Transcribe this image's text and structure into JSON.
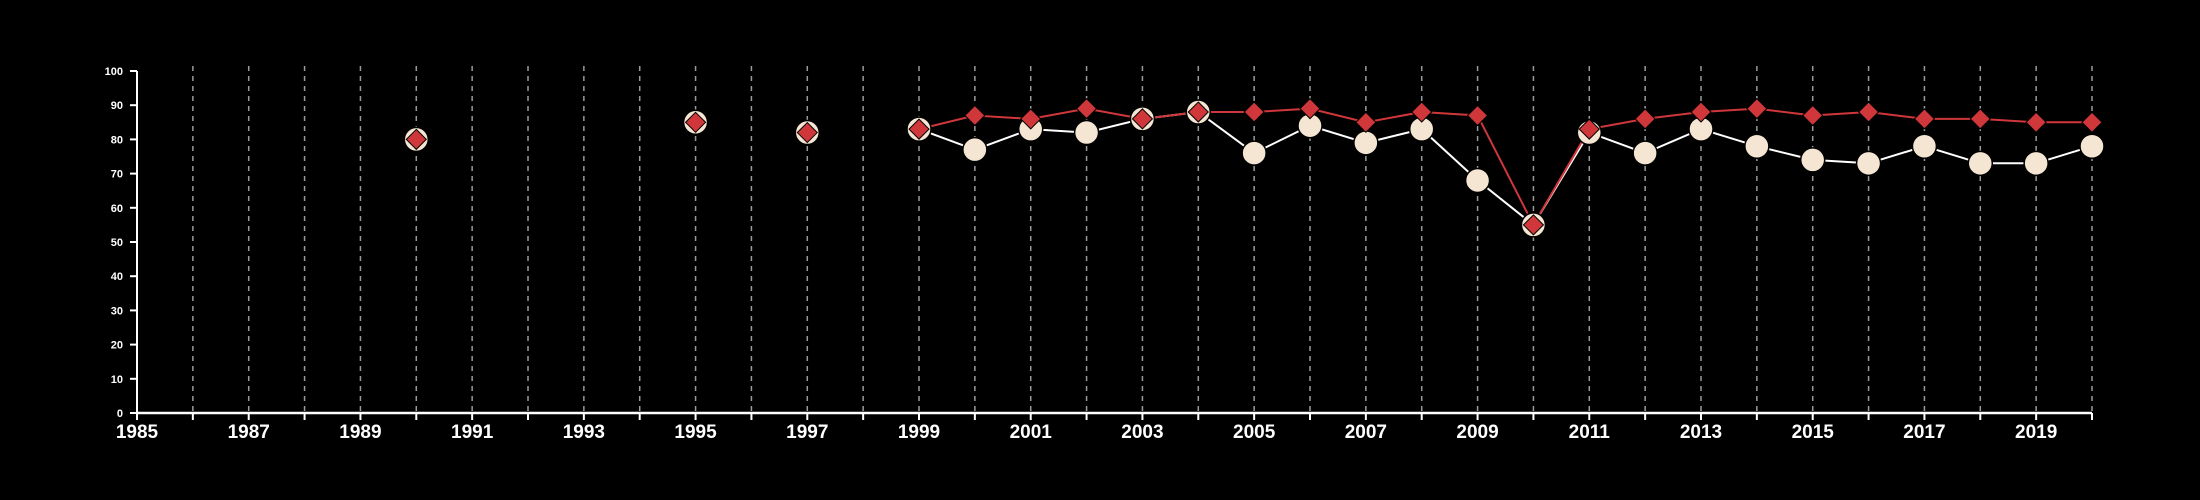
{
  "chart_data": {
    "type": "line",
    "title": "",
    "xlabel": "",
    "ylabel": "",
    "xlim": [
      1985,
      2020
    ],
    "ylim": [
      0,
      100
    ],
    "y_ticks": [
      "0",
      "10",
      "20",
      "30",
      "40",
      "50",
      "60",
      "70",
      "80",
      "90",
      "100"
    ],
    "x_ticks": [
      "1985",
      "1987",
      "1989",
      "1991",
      "1993",
      "1995",
      "1997",
      "1999",
      "2001",
      "2003",
      "2005",
      "2007",
      "2009",
      "2011",
      "2013",
      "2015",
      "2017",
      "2019"
    ],
    "grid": "vertical dashed lines at every year",
    "legend": "none",
    "colors": {
      "background": "#000000",
      "axis": "#ffffff",
      "grid": "#9a9a9a",
      "series_a_marker": "#f5e6d3",
      "series_a_line": "#ffffff",
      "series_b": "#d0373b"
    },
    "series": [
      {
        "marker": "circle",
        "points": [
          [
            1999,
            83
          ],
          [
            2000,
            77
          ],
          [
            2001,
            83
          ],
          [
            2002,
            82
          ],
          [
            2003,
            86
          ],
          [
            2004,
            88
          ],
          [
            2005,
            76
          ],
          [
            2006,
            84
          ],
          [
            2007,
            79
          ],
          [
            2008,
            83
          ],
          [
            2009,
            68
          ],
          [
            2010,
            55
          ],
          [
            2011,
            82
          ],
          [
            2012,
            76
          ],
          [
            2013,
            83
          ],
          [
            2014,
            78
          ],
          [
            2015,
            74
          ],
          [
            2016,
            73
          ],
          [
            2017,
            78
          ],
          [
            2018,
            73
          ],
          [
            2019,
            73
          ],
          [
            2020,
            78
          ]
        ],
        "isolated_points": [
          [
            1990,
            80
          ],
          [
            1995,
            85
          ],
          [
            1997,
            82
          ]
        ]
      },
      {
        "marker": "diamond",
        "points": [
          [
            1999,
            83
          ],
          [
            2000,
            87
          ],
          [
            2001,
            86
          ],
          [
            2002,
            89
          ],
          [
            2003,
            86
          ],
          [
            2004,
            88
          ],
          [
            2005,
            88
          ],
          [
            2006,
            89
          ],
          [
            2007,
            85
          ],
          [
            2008,
            88
          ],
          [
            2009,
            87
          ],
          [
            2010,
            55
          ],
          [
            2011,
            83
          ],
          [
            2012,
            86
          ],
          [
            2013,
            88
          ],
          [
            2014,
            89
          ],
          [
            2015,
            87
          ],
          [
            2016,
            88
          ],
          [
            2017,
            86
          ],
          [
            2018,
            86
          ],
          [
            2019,
            85
          ],
          [
            2020,
            85
          ]
        ],
        "isolated_points": [
          [
            1990,
            80
          ],
          [
            1995,
            85
          ],
          [
            1997,
            82
          ]
        ]
      }
    ]
  }
}
